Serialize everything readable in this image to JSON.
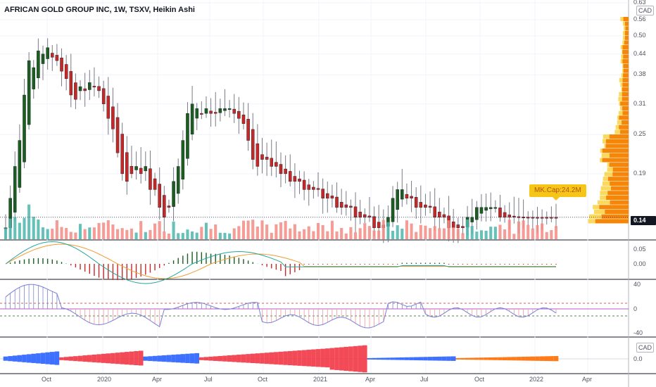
{
  "header": {
    "title": "AFRICAN GOLD GROUP INC, 1W, TSXV, Heikin Ashi",
    "currency": "CAD"
  },
  "price_axis": {
    "labels": [
      "0.63",
      "0.56",
      "0.50",
      "0.44",
      "0.38",
      "0.31",
      "0.25",
      "0.19",
      "0.14"
    ],
    "current_price": "0.14"
  },
  "annotation": {
    "market_cap": "MK.Cap:24.2M"
  },
  "macd_axis": {
    "labels": [
      "0.05",
      "0.00"
    ]
  },
  "osc_axis": {
    "labels": [
      "40",
      "0",
      "-40"
    ]
  },
  "bottom_panel": {
    "currency": "CAD",
    "labels": [
      "0.0"
    ]
  },
  "time_axis": {
    "labels": [
      "Oct",
      "2020",
      "Apr",
      "Jul",
      "Oct",
      "2021",
      "Apr",
      "Jul",
      "Oct",
      "2022",
      "Apr"
    ]
  },
  "colors": {
    "up": "#1b5e20",
    "down": "#c62828",
    "vol_up": "#4db6ac",
    "vol_down": "#f28b82",
    "vp_orange": "#f57c00",
    "vp_yellow": "#f9d54a",
    "macd_line": "#26a69a",
    "signal_line": "#f39c34",
    "osc_line": "#7b7fd8",
    "bar_blue": "#2962ff",
    "bar_red": "#f23645",
    "bar_orange": "#ff6d00"
  },
  "chart_data": {
    "type": "candlestick",
    "period": "1W",
    "x_range": [
      "2019-08",
      "2022-05"
    ],
    "ylim": [
      0.12,
      0.63
    ],
    "y_scale": "log",
    "price_series": [
      0.13,
      0.16,
      0.2,
      0.24,
      0.33,
      0.42,
      0.4,
      0.45,
      0.44,
      0.46,
      0.43,
      0.42,
      0.39,
      0.37,
      0.33,
      0.32,
      0.35,
      0.34,
      0.36,
      0.35,
      0.34,
      0.31,
      0.28,
      0.26,
      0.22,
      0.19,
      0.18,
      0.19,
      0.2,
      0.19,
      0.2,
      0.17,
      0.17,
      0.15,
      0.14,
      0.15,
      0.18,
      0.2,
      0.24,
      0.29,
      0.31,
      0.3,
      0.29,
      0.3,
      0.29,
      0.29,
      0.3,
      0.3,
      0.3,
      0.29,
      0.28,
      0.27,
      0.24,
      0.21,
      0.2,
      0.21,
      0.21,
      0.2,
      0.2,
      0.19,
      0.19,
      0.18,
      0.18,
      0.18,
      0.17,
      0.17,
      0.17,
      0.17,
      0.16,
      0.16,
      0.16,
      0.15,
      0.15,
      0.15,
      0.15,
      0.14,
      0.14,
      0.14,
      0.14,
      0.13,
      0.13,
      0.13,
      0.14,
      0.16,
      0.17,
      0.17,
      0.16,
      0.16,
      0.15,
      0.15,
      0.15,
      0.15,
      0.14,
      0.14,
      0.14,
      0.13,
      0.13,
      0.13,
      0.13,
      0.14,
      0.14,
      0.15,
      0.15,
      0.15,
      0.15,
      0.15,
      0.14,
      0.14,
      0.14,
      0.14,
      0.14,
      0.14,
      0.14,
      0.14,
      0.14,
      0.14,
      0.14,
      0.14,
      0.14
    ],
    "current": 0.14
  }
}
